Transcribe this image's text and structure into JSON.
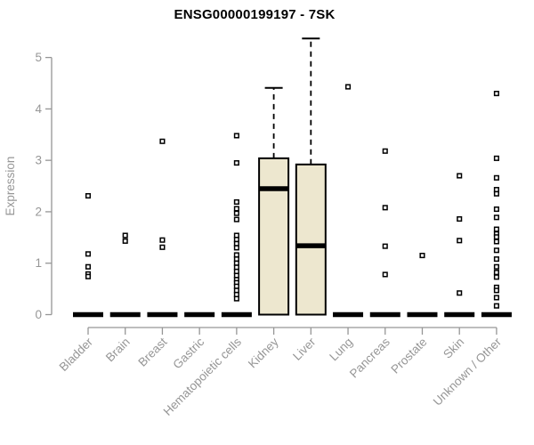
{
  "chart_data": {
    "type": "boxplot",
    "title": "ENSG00000199197 - 7SK",
    "ylabel": "Expression",
    "xlabel": "",
    "yticks": [
      0,
      1,
      2,
      3,
      4,
      5
    ],
    "ylim": [
      0,
      5.4
    ],
    "grid": "off",
    "axis_color": "#969696",
    "box_fill": "#EDE7CF",
    "box_border": "#000000",
    "categories": [
      "Bladder",
      "Brain",
      "Breast",
      "Gastric",
      "Hematopoietic cells",
      "Kidney",
      "Liver",
      "Lung",
      "Pancreas",
      "Prostate",
      "Skin",
      "Unknown / Other"
    ],
    "boxes": [
      {
        "category": "Bladder",
        "q1": 0,
        "median": 0,
        "q3": 0,
        "whisker_low": 0,
        "whisker_high": 0,
        "outliers": [
          2.31,
          1.18,
          0.93,
          0.79,
          0.74
        ]
      },
      {
        "category": "Brain",
        "q1": 0,
        "median": 0,
        "q3": 0,
        "whisker_low": 0,
        "whisker_high": 0,
        "outliers": [
          1.54,
          1.43
        ]
      },
      {
        "category": "Breast",
        "q1": 0,
        "median": 0,
        "q3": 0,
        "whisker_low": 0,
        "whisker_high": 0,
        "outliers": [
          3.37,
          1.45,
          1.31
        ]
      },
      {
        "category": "Gastric",
        "q1": 0,
        "median": 0,
        "q3": 0,
        "whisker_low": 0,
        "whisker_high": 0,
        "outliers": []
      },
      {
        "category": "Hematopoietic cells",
        "q1": 0,
        "median": 0,
        "q3": 0,
        "whisker_low": 0,
        "whisker_high": 0,
        "outliers": [
          3.48,
          2.95,
          2.19,
          2.06,
          1.97,
          1.85,
          1.54,
          1.46,
          1.38,
          1.3,
          1.16,
          1.08,
          1.0,
          0.92,
          0.84,
          0.76,
          0.68,
          0.62,
          0.55,
          0.47,
          0.39,
          0.31
        ]
      },
      {
        "category": "Kidney",
        "q1": 0,
        "median": 2.45,
        "q3": 3.04,
        "whisker_low": 0,
        "whisker_high": 4.41,
        "outliers": []
      },
      {
        "category": "Liver",
        "q1": 0,
        "median": 1.34,
        "q3": 2.92,
        "whisker_low": 0,
        "whisker_high": 5.37,
        "outliers": []
      },
      {
        "category": "Lung",
        "q1": 0,
        "median": 0,
        "q3": 0,
        "whisker_low": 0,
        "whisker_high": 0,
        "outliers": [
          4.43
        ]
      },
      {
        "category": "Pancreas",
        "q1": 0,
        "median": 0,
        "q3": 0,
        "whisker_low": 0,
        "whisker_high": 0,
        "outliers": [
          3.18,
          2.08,
          1.33,
          0.78
        ]
      },
      {
        "category": "Prostate",
        "q1": 0,
        "median": 0,
        "q3": 0,
        "whisker_low": 0,
        "whisker_high": 0,
        "outliers": [
          1.15
        ]
      },
      {
        "category": "Skin",
        "q1": 0,
        "median": 0,
        "q3": 0,
        "whisker_low": 0,
        "whisker_high": 0,
        "outliers": [
          2.7,
          1.86,
          1.44,
          0.42
        ]
      },
      {
        "category": "Unknown / Other",
        "q1": 0,
        "median": 0,
        "q3": 0,
        "whisker_low": 0,
        "whisker_high": 0,
        "outliers": [
          4.3,
          3.04,
          2.66,
          2.43,
          2.35,
          2.05,
          1.89,
          1.66,
          1.57,
          1.51,
          1.42,
          1.25,
          1.08,
          0.93,
          0.82,
          0.73,
          0.53,
          0.47,
          0.33,
          0.17
        ]
      }
    ]
  }
}
